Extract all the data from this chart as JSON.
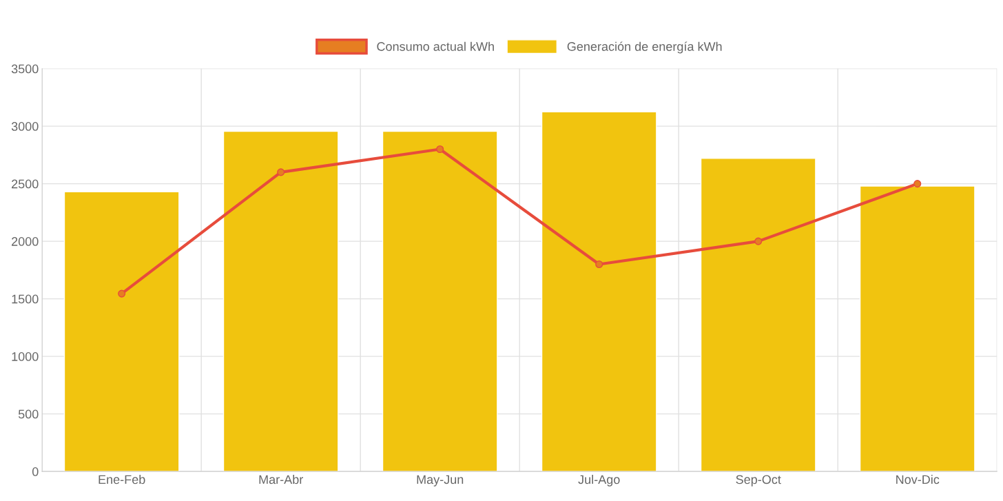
{
  "chart_data": {
    "type": "bar",
    "categories": [
      "Ene-Feb",
      "Mar-Abr",
      "May-Jun",
      "Jul-Ago",
      "Sep-Oct",
      "Nov-Dic"
    ],
    "series": [
      {
        "name": "Consumo actual kWh",
        "type": "line",
        "color": "#e74c3c",
        "values": [
          1545,
          2600,
          2800,
          1800,
          2000,
          2500
        ]
      },
      {
        "name": "Generación de energía kWh",
        "color": "#f1c40f",
        "values": [
          2430,
          2955,
          2955,
          3125,
          2720,
          2480
        ]
      }
    ],
    "ylim": [
      0,
      3500
    ],
    "yticks": [
      0,
      500,
      1000,
      1500,
      2000,
      2500,
      3000,
      3500
    ],
    "grid": true,
    "legend": "top",
    "marker": "circle",
    "line_style": "solid"
  }
}
